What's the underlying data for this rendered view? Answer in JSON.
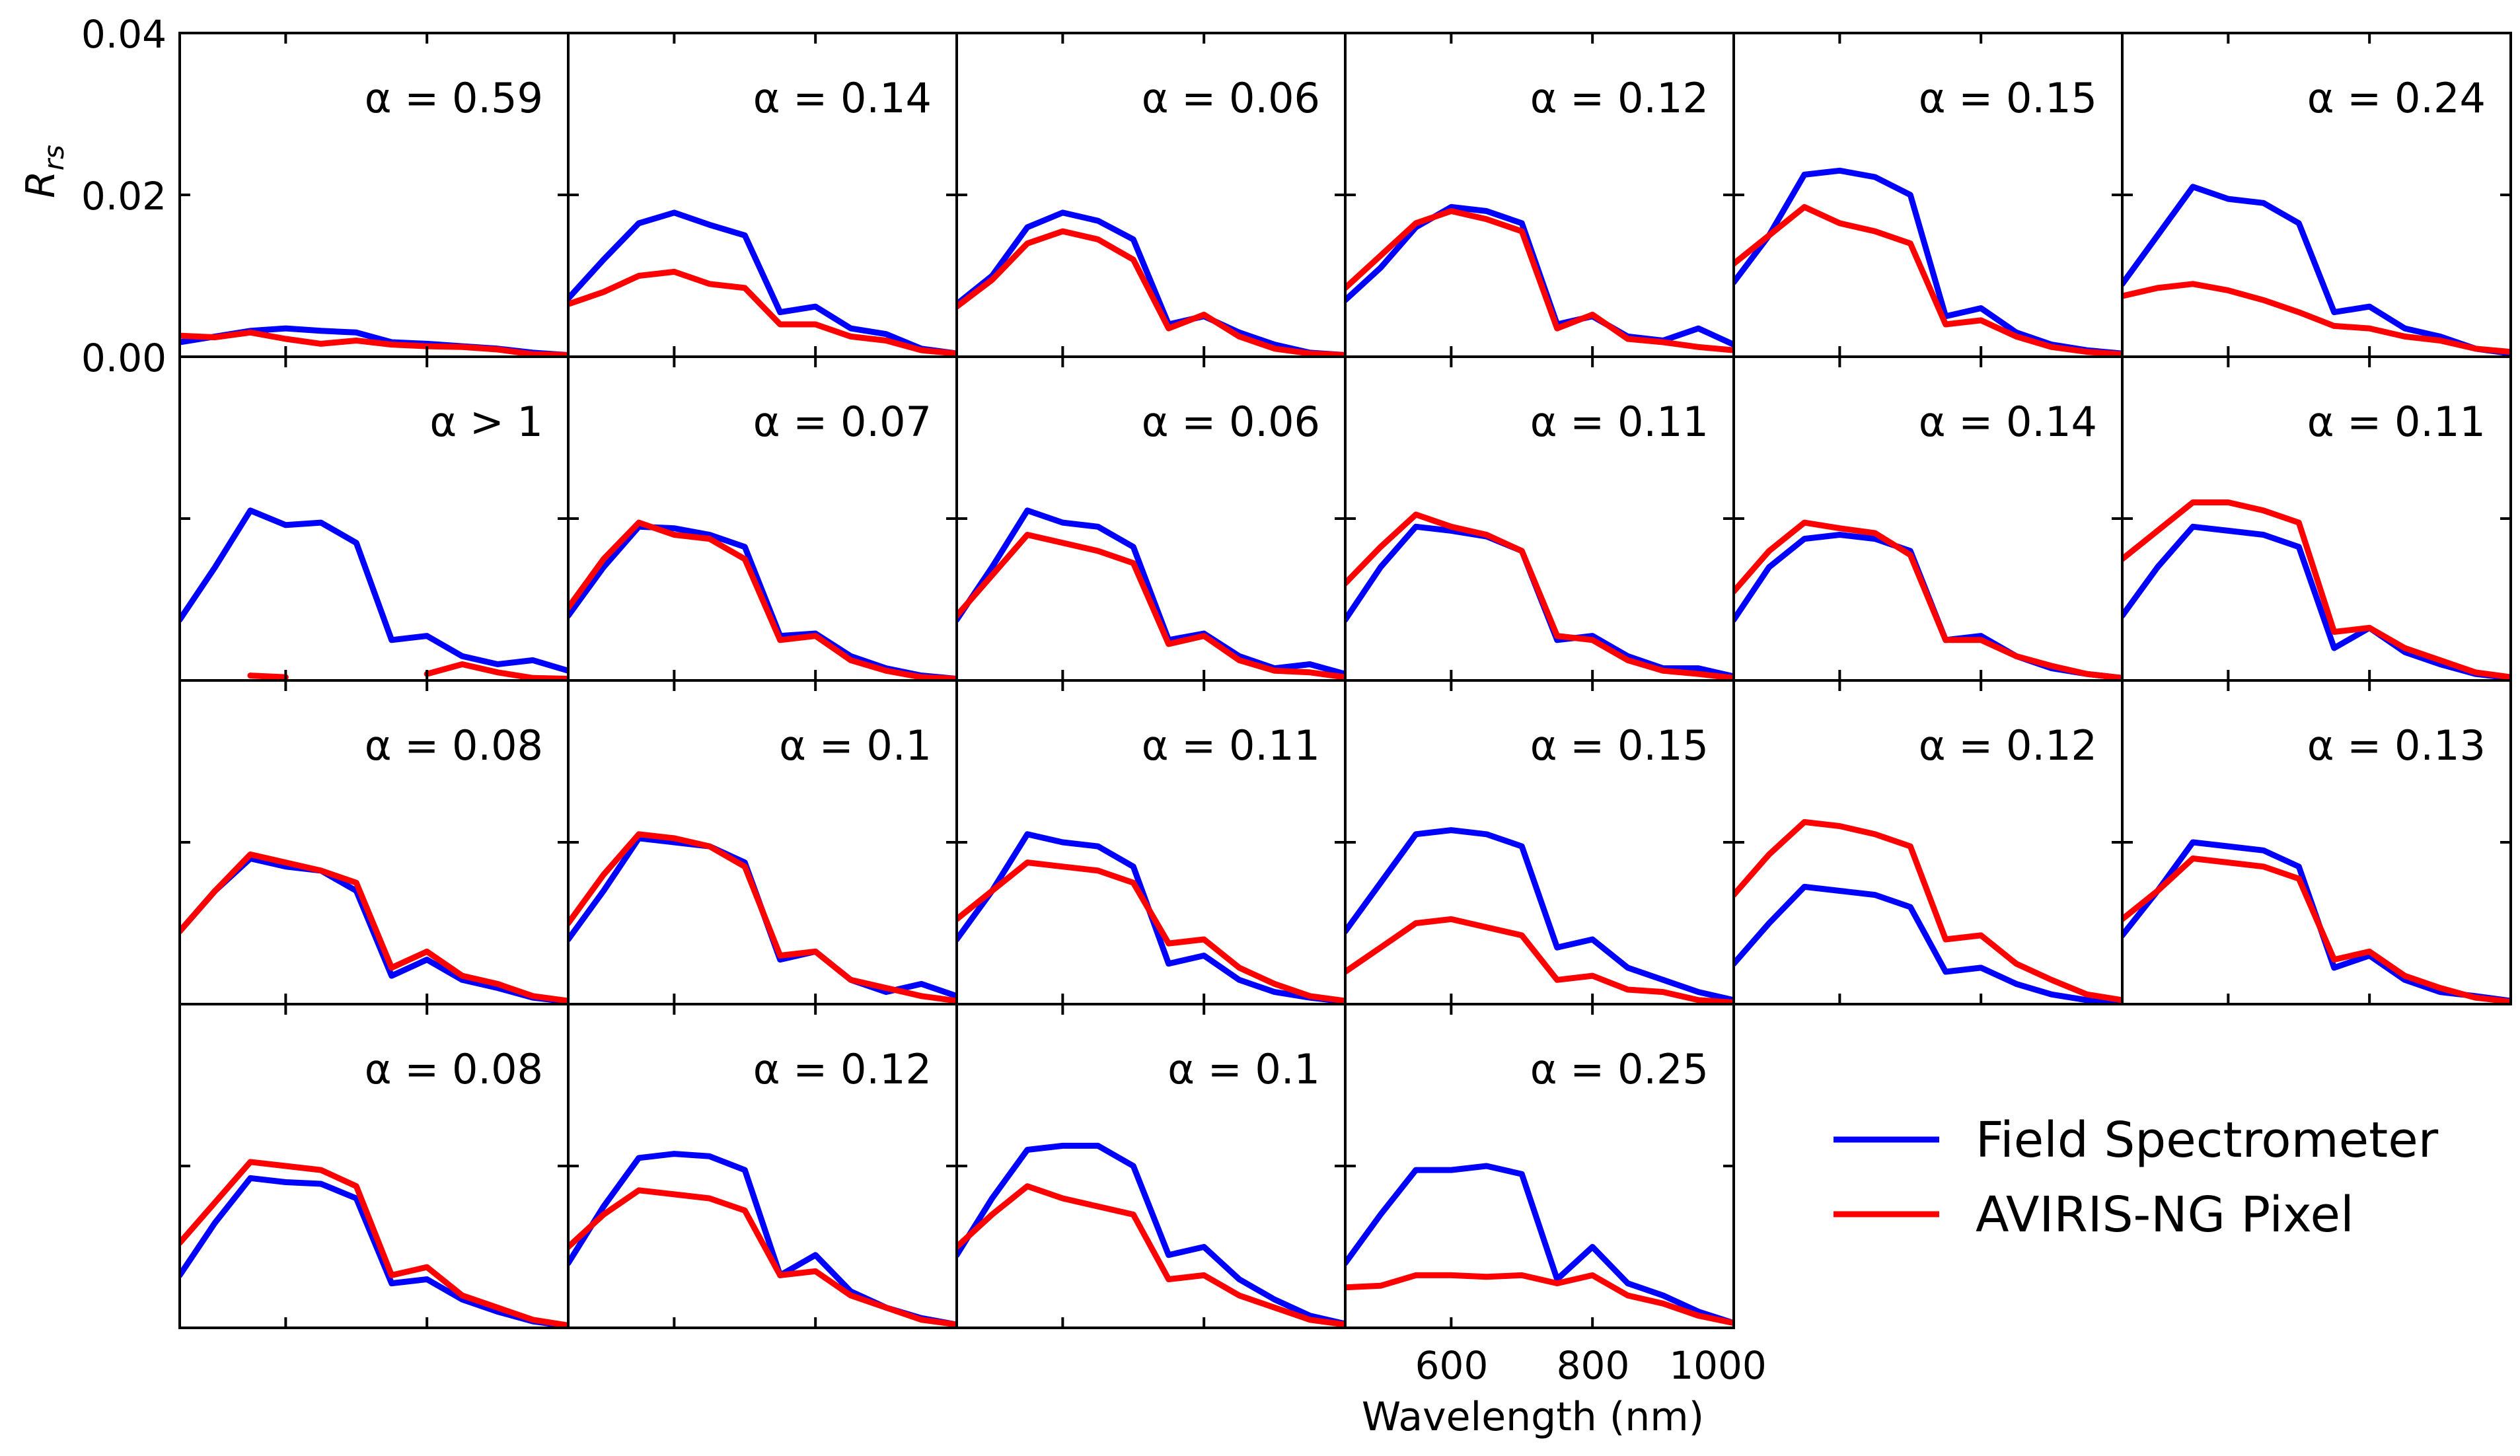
{
  "chart_data": {
    "type": "line",
    "layout": "small-multiples grid, 4 rows x 6 columns (22 panels)",
    "ylabel": "R",
    "ylabel_sub": "rs",
    "xlabel": "Wavelength (nm)",
    "xlim": [
      450,
      1000
    ],
    "ylim": [
      0,
      0.04
    ],
    "x_ticks": [
      600,
      800,
      1000
    ],
    "x_tick_labels": [
      "600",
      "800",
      "1000"
    ],
    "y_ticks": [
      0.0,
      0.02,
      0.04
    ],
    "y_tick_labels": [
      "0.00",
      "0.02",
      "0.04"
    ],
    "legend_position": "bottom-right",
    "x": [
      450,
      500,
      550,
      600,
      650,
      700,
      750,
      800,
      850,
      900,
      950,
      1000
    ],
    "series_meta": [
      {
        "name": "Field Spectrometer",
        "color": "#0000ff"
      },
      {
        "name": "AVIRIS-NG Pixel",
        "color": "#ff0000"
      }
    ],
    "panels": [
      {
        "alpha": "α = 0.59",
        "field": [
          0.0018,
          0.0025,
          0.0032,
          0.0035,
          0.0032,
          0.003,
          0.0018,
          0.0016,
          0.0013,
          0.001,
          0.0005,
          0.0002
        ],
        "aviris": [
          0.0026,
          0.0024,
          0.003,
          0.0022,
          0.0016,
          0.002,
          0.0015,
          0.0013,
          0.0012,
          0.0009,
          0.0003,
          0.0002
        ]
      },
      {
        "alpha": "α = 0.14",
        "field": [
          0.0072,
          0.012,
          0.0165,
          0.0178,
          0.0163,
          0.015,
          0.0055,
          0.0062,
          0.0035,
          0.0028,
          0.001,
          0.0004
        ],
        "aviris": [
          0.0065,
          0.008,
          0.01,
          0.0105,
          0.009,
          0.0085,
          0.004,
          0.004,
          0.0025,
          0.002,
          0.0008,
          0.0004
        ]
      },
      {
        "alpha": "α = 0.06",
        "field": [
          0.0065,
          0.01,
          0.016,
          0.0178,
          0.0168,
          0.0145,
          0.004,
          0.005,
          0.003,
          0.0015,
          0.0005,
          0.0002
        ],
        "aviris": [
          0.0062,
          0.0095,
          0.014,
          0.0155,
          0.0145,
          0.012,
          0.0035,
          0.0052,
          0.0025,
          0.001,
          0.0004,
          0.0002
        ]
      },
      {
        "alpha": "α = 0.12",
        "field": [
          0.007,
          0.011,
          0.016,
          0.0185,
          0.018,
          0.0165,
          0.004,
          0.005,
          0.0025,
          0.002,
          0.0035,
          0.0015
        ],
        "aviris": [
          0.0085,
          0.0125,
          0.0165,
          0.018,
          0.017,
          0.0155,
          0.0035,
          0.0052,
          0.0022,
          0.0018,
          0.0012,
          0.0008
        ]
      },
      {
        "alpha": "α = 0.15",
        "field": [
          0.0092,
          0.015,
          0.0225,
          0.023,
          0.0222,
          0.02,
          0.005,
          0.006,
          0.003,
          0.0015,
          0.0008,
          0.0004
        ],
        "aviris": [
          0.0115,
          0.015,
          0.0185,
          0.0165,
          0.0155,
          0.014,
          0.004,
          0.0045,
          0.0025,
          0.0012,
          0.0006,
          0.0003
        ]
      },
      {
        "alpha": "α = 0.24",
        "field": [
          0.009,
          0.015,
          0.021,
          0.0195,
          0.019,
          0.0165,
          0.0055,
          0.0062,
          0.0035,
          0.0025,
          0.001,
          0.0004
        ],
        "aviris": [
          0.0075,
          0.0085,
          0.009,
          0.0082,
          0.007,
          0.0055,
          0.0038,
          0.0035,
          0.0025,
          0.002,
          0.001,
          0.0006
        ]
      },
      {
        "alpha": "α > 1",
        "field": [
          0.0075,
          0.014,
          0.021,
          0.0192,
          0.0195,
          0.017,
          0.005,
          0.0055,
          0.003,
          0.002,
          0.0025,
          0.0012
        ],
        "aviris": [
          null,
          null,
          0.0006,
          0.0004,
          null,
          null,
          null,
          0.0008,
          0.002,
          0.001,
          0.0003,
          0.0002
        ]
      },
      {
        "alpha": "α = 0.07",
        "field": [
          0.008,
          0.014,
          0.019,
          0.0188,
          0.018,
          0.0165,
          0.0055,
          0.0058,
          0.003,
          0.0015,
          0.0006,
          0.0002
        ],
        "aviris": [
          0.009,
          0.015,
          0.0195,
          0.018,
          0.0175,
          0.015,
          0.005,
          0.0055,
          0.0025,
          0.0012,
          0.0004,
          0.0002
        ]
      },
      {
        "alpha": "α = 0.06",
        "field": [
          0.0075,
          0.014,
          0.021,
          0.0195,
          0.019,
          0.0165,
          0.005,
          0.0058,
          0.003,
          0.0015,
          0.002,
          0.0008
        ],
        "aviris": [
          0.008,
          0.013,
          0.018,
          0.017,
          0.016,
          0.0145,
          0.0045,
          0.0055,
          0.0025,
          0.0012,
          0.001,
          0.0004
        ]
      },
      {
        "alpha": "α = 0.11",
        "field": [
          0.0075,
          0.014,
          0.019,
          0.0185,
          0.0178,
          0.016,
          0.005,
          0.0055,
          0.003,
          0.0015,
          0.0015,
          0.0005
        ],
        "aviris": [
          0.012,
          0.0165,
          0.0205,
          0.019,
          0.018,
          0.016,
          0.0055,
          0.005,
          0.0025,
          0.0012,
          0.0008,
          0.0003
        ]
      },
      {
        "alpha": "α = 0.14",
        "field": [
          0.0075,
          0.014,
          0.0175,
          0.018,
          0.0175,
          0.016,
          0.005,
          0.0055,
          0.003,
          0.0015,
          0.0008,
          0.0003
        ],
        "aviris": [
          0.011,
          0.016,
          0.0195,
          0.0188,
          0.0182,
          0.0155,
          0.005,
          0.005,
          0.003,
          0.0018,
          0.0008,
          0.0003
        ]
      },
      {
        "alpha": "α = 0.11",
        "field": [
          0.008,
          0.014,
          0.019,
          0.0185,
          0.018,
          0.0165,
          0.004,
          0.0065,
          0.0035,
          0.002,
          0.0008,
          0.0003
        ],
        "aviris": [
          0.015,
          0.0185,
          0.022,
          0.022,
          0.021,
          0.0195,
          0.006,
          0.0065,
          0.004,
          0.0025,
          0.001,
          0.0004
        ]
      },
      {
        "alpha": "α = 0.08",
        "field": [
          0.009,
          0.014,
          0.018,
          0.017,
          0.0165,
          0.014,
          0.0035,
          0.0055,
          0.003,
          0.002,
          0.0008,
          0.0003
        ],
        "aviris": [
          0.009,
          0.014,
          0.0185,
          0.0175,
          0.0165,
          0.015,
          0.0045,
          0.0065,
          0.0035,
          0.0025,
          0.001,
          0.0004
        ]
      },
      {
        "alpha": "α = 0.1",
        "field": [
          0.008,
          0.014,
          0.0205,
          0.02,
          0.0195,
          0.0175,
          0.0055,
          0.0065,
          0.003,
          0.0015,
          0.0025,
          0.001
        ],
        "aviris": [
          0.01,
          0.016,
          0.021,
          0.0205,
          0.0195,
          0.017,
          0.006,
          0.0065,
          0.003,
          0.002,
          0.001,
          0.0004
        ]
      },
      {
        "alpha": "α = 0.11",
        "field": [
          0.008,
          0.014,
          0.021,
          0.02,
          0.0195,
          0.017,
          0.005,
          0.006,
          0.003,
          0.0015,
          0.0008,
          0.0003
        ],
        "aviris": [
          0.0105,
          0.014,
          0.0175,
          0.017,
          0.0165,
          0.015,
          0.0075,
          0.008,
          0.0045,
          0.0025,
          0.001,
          0.0004
        ]
      },
      {
        "alpha": "α = 0.15",
        "field": [
          0.009,
          0.015,
          0.021,
          0.0215,
          0.021,
          0.0195,
          0.007,
          0.008,
          0.0045,
          0.003,
          0.0015,
          0.0005
        ],
        "aviris": [
          0.004,
          0.007,
          0.01,
          0.0105,
          0.0095,
          0.0085,
          0.003,
          0.0035,
          0.0018,
          0.0015,
          0.0005,
          0.0002
        ]
      },
      {
        "alpha": "α = 0.12",
        "field": [
          0.005,
          0.01,
          0.0145,
          0.014,
          0.0135,
          0.012,
          0.004,
          0.0045,
          0.0025,
          0.0012,
          0.0005,
          0.0002
        ],
        "aviris": [
          0.0135,
          0.0185,
          0.0225,
          0.022,
          0.021,
          0.0195,
          0.008,
          0.0085,
          0.005,
          0.003,
          0.0012,
          0.0005
        ]
      },
      {
        "alpha": "α = 0.13",
        "field": [
          0.0085,
          0.014,
          0.02,
          0.0195,
          0.019,
          0.017,
          0.0045,
          0.006,
          0.003,
          0.0015,
          0.001,
          0.0004
        ],
        "aviris": [
          0.0105,
          0.014,
          0.018,
          0.0175,
          0.017,
          0.0155,
          0.0055,
          0.0065,
          0.0035,
          0.002,
          0.0008,
          0.0003
        ]
      },
      {
        "alpha": "α = 0.08",
        "field": [
          0.0065,
          0.013,
          0.0185,
          0.018,
          0.0178,
          0.016,
          0.0055,
          0.006,
          0.0035,
          0.002,
          0.0008,
          0.0002
        ],
        "aviris": [
          0.0105,
          0.0155,
          0.0205,
          0.02,
          0.0195,
          0.0175,
          0.0065,
          0.0075,
          0.004,
          0.0025,
          0.001,
          0.0003
        ]
      },
      {
        "alpha": "α = 0.12",
        "field": [
          0.008,
          0.015,
          0.021,
          0.0215,
          0.0212,
          0.0195,
          0.0065,
          0.009,
          0.0045,
          0.0025,
          0.0012,
          0.0004
        ],
        "aviris": [
          0.01,
          0.014,
          0.017,
          0.0165,
          0.016,
          0.0145,
          0.0065,
          0.007,
          0.004,
          0.0025,
          0.001,
          0.0004
        ]
      },
      {
        "alpha": "α = 0.1",
        "field": [
          0.009,
          0.016,
          0.022,
          0.0225,
          0.0225,
          0.02,
          0.009,
          0.01,
          0.006,
          0.0035,
          0.0015,
          0.0005
        ],
        "aviris": [
          0.01,
          0.014,
          0.0175,
          0.016,
          0.015,
          0.014,
          0.006,
          0.0065,
          0.004,
          0.0025,
          0.001,
          0.0004
        ]
      },
      {
        "alpha": "α = 0.25",
        "field": [
          0.008,
          0.014,
          0.0195,
          0.0195,
          0.02,
          0.019,
          0.006,
          0.01,
          0.0055,
          0.004,
          0.002,
          0.0006
        ],
        "aviris": [
          0.005,
          0.0052,
          0.0065,
          0.0065,
          0.0063,
          0.0065,
          0.0055,
          0.0065,
          0.004,
          0.003,
          0.0015,
          0.0006
        ]
      }
    ]
  }
}
